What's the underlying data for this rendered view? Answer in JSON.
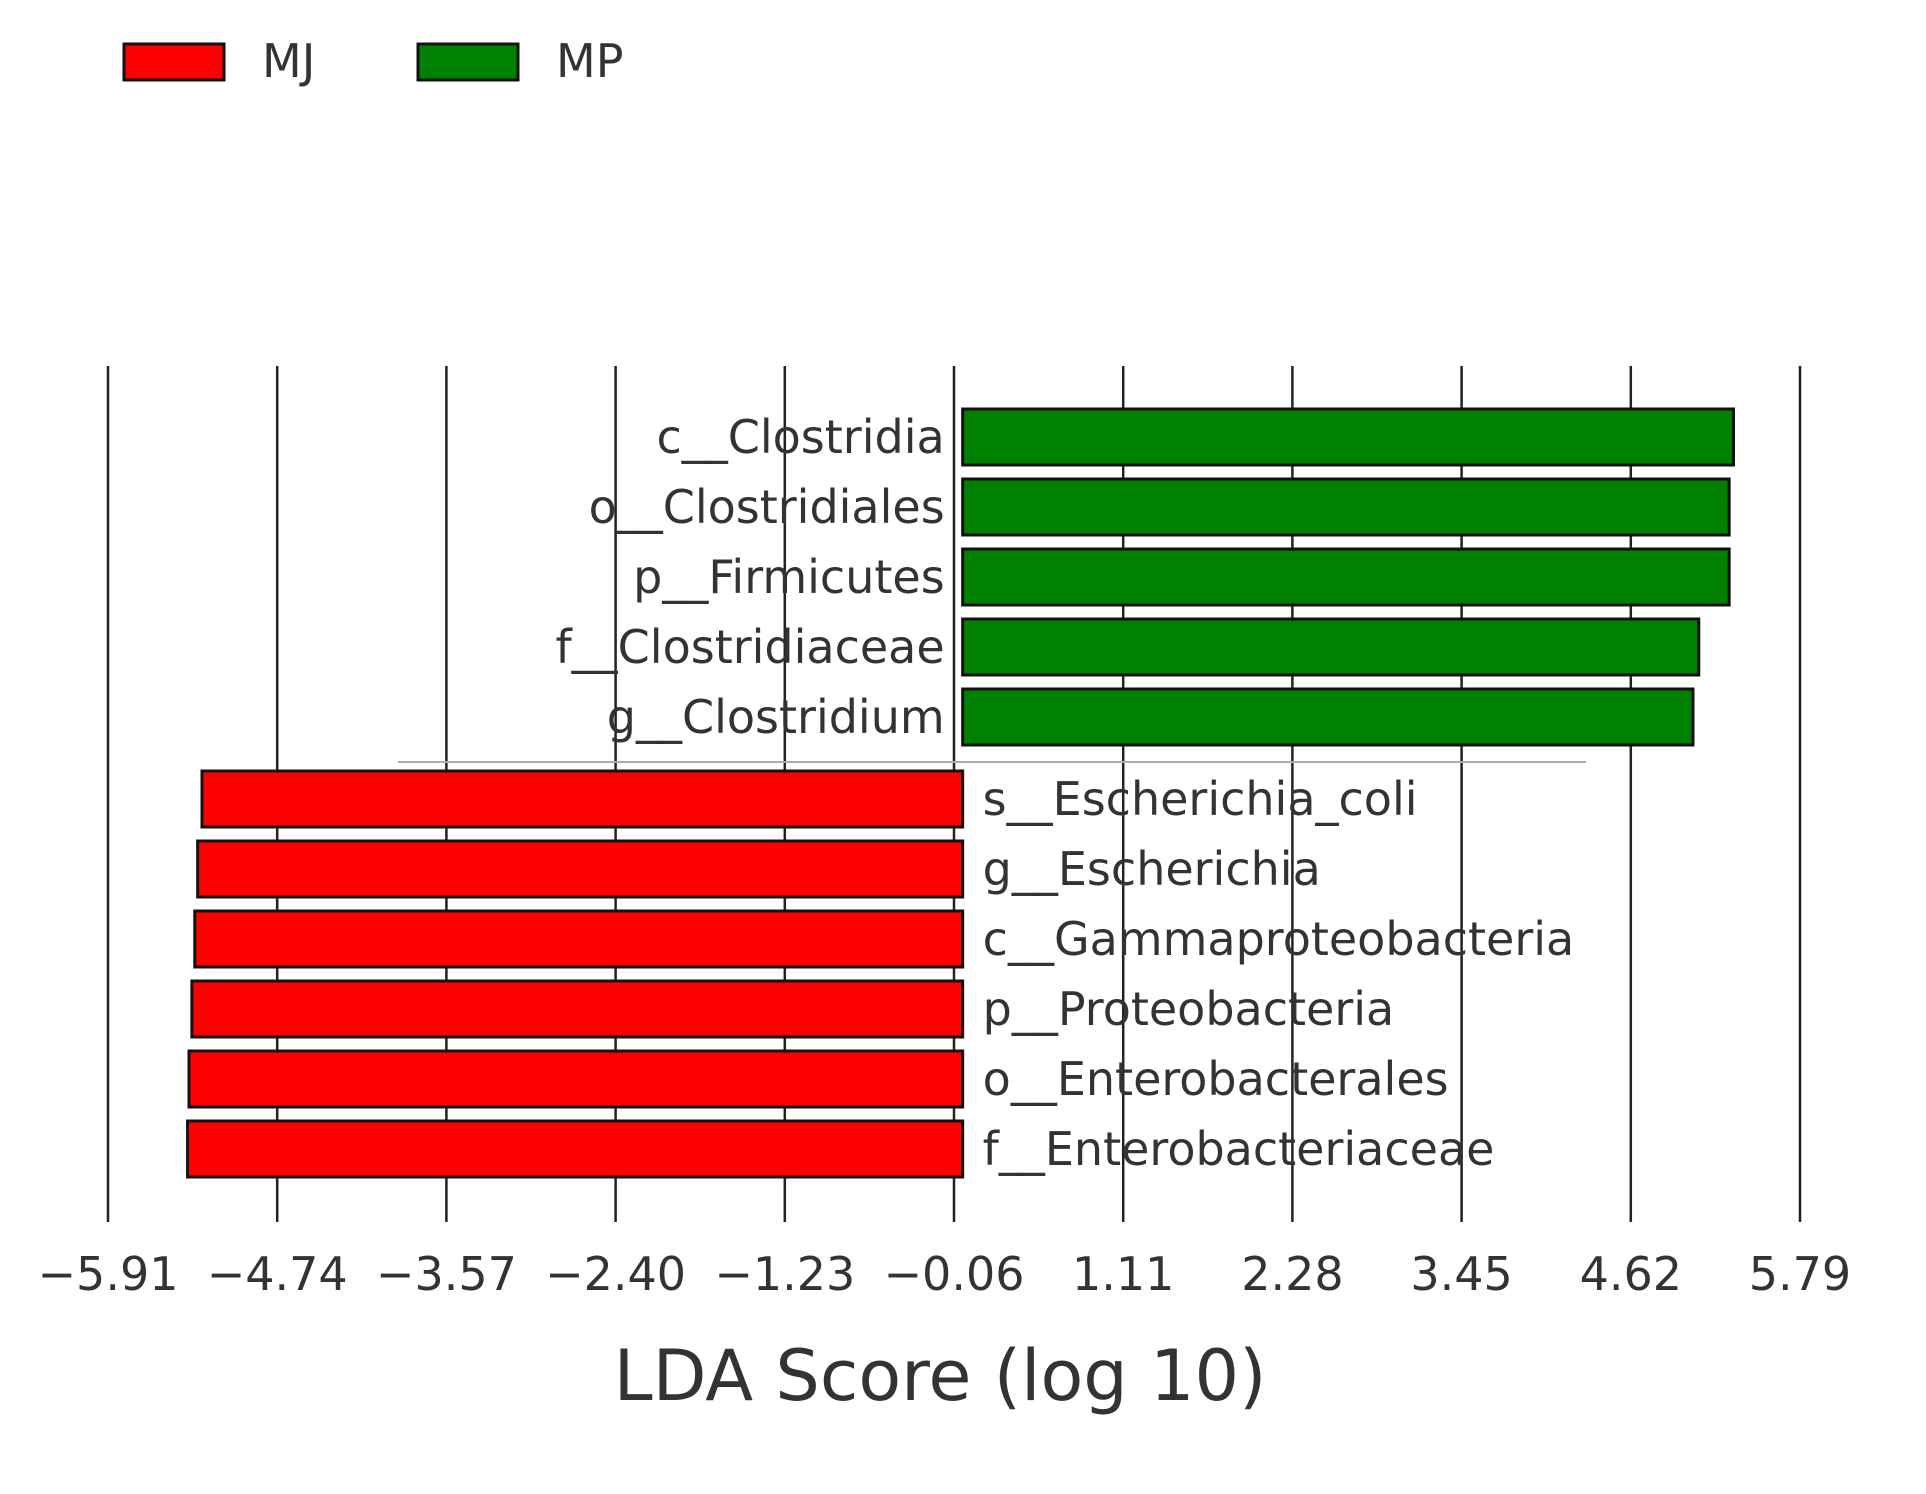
{
  "chart_data": {
    "type": "bar",
    "orientation": "horizontal",
    "title": "",
    "xlabel": "LDA Score (log 10)",
    "ylabel": "",
    "xlim": [
      -5.91,
      5.79
    ],
    "xticks": [
      -5.91,
      -4.74,
      -3.57,
      -2.4,
      -1.23,
      -0.06,
      1.11,
      2.28,
      3.45,
      4.62,
      5.79
    ],
    "xtick_labels": [
      "−5.91",
      "−4.74",
      "−3.57",
      "−2.40",
      "−1.23",
      "−0.06",
      "1.11",
      "2.28",
      "3.45",
      "4.62",
      "5.79"
    ],
    "grid": "vertical",
    "legend": {
      "placement": "top-left",
      "entries": [
        {
          "name": "MJ",
          "color": "#ff0000"
        },
        {
          "name": "MP",
          "color": "#008000"
        }
      ]
    },
    "bars": [
      {
        "label": "c__Clostridia",
        "group": "MP",
        "value": 5.33
      },
      {
        "label": "o__Clostridiales",
        "group": "MP",
        "value": 5.3
      },
      {
        "label": "p__Firmicutes",
        "group": "MP",
        "value": 5.3
      },
      {
        "label": "f__Clostridiaceae",
        "group": "MP",
        "value": 5.09
      },
      {
        "label": "g__Clostridium",
        "group": "MP",
        "value": 5.05
      },
      {
        "label": "s__Escherichia_coli",
        "group": "MJ",
        "value": -5.26
      },
      {
        "label": "g__Escherichia",
        "group": "MJ",
        "value": -5.29
      },
      {
        "label": "c__Gammaproteobacteria",
        "group": "MJ",
        "value": -5.31
      },
      {
        "label": "p__Proteobacteria",
        "group": "MJ",
        "value": -5.33
      },
      {
        "label": "o__Enterobacterales",
        "group": "MJ",
        "value": -5.35
      },
      {
        "label": "f__Enterobacteriaceae",
        "group": "MJ",
        "value": -5.36
      }
    ]
  }
}
